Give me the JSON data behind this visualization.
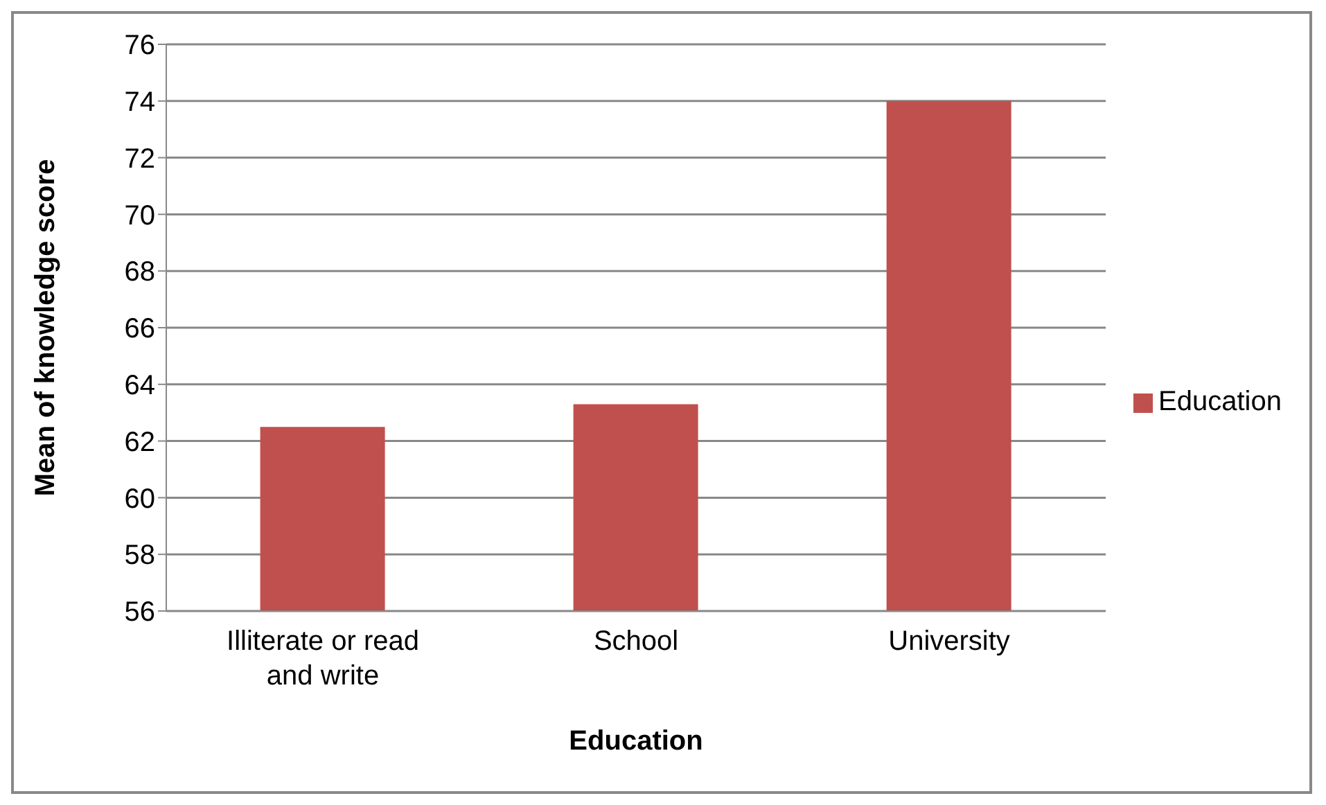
{
  "chart_data": {
    "type": "bar",
    "xlabel": "Education",
    "ylabel": "Mean of knowledge score",
    "categories": [
      "Illiterate or read and write",
      "School",
      "University"
    ],
    "series": [
      {
        "name": "Education",
        "color": "#c0504d",
        "values": [
          62.5,
          63.3,
          74
        ]
      }
    ],
    "ylim": [
      56,
      76
    ],
    "yticks": [
      56,
      58,
      60,
      62,
      64,
      66,
      68,
      70,
      72,
      74,
      76
    ],
    "grid": "y",
    "legend": "right"
  }
}
